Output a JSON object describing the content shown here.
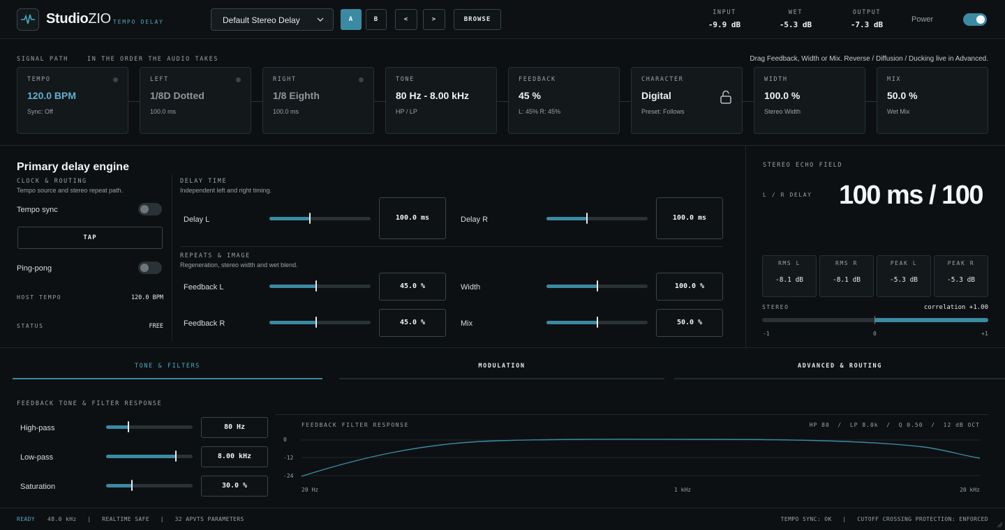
{
  "header": {
    "brand_studio": "Studio",
    "brand_zio": "ZIO",
    "brand_sub": "TEMPO DELAY",
    "preset": "Default Stereo Delay",
    "btn_a": "A",
    "btn_b": "B",
    "btn_prev": "<",
    "btn_next": ">",
    "btn_browse": "BROWSE",
    "meters": [
      {
        "label": "INPUT",
        "value": "-9.9 dB"
      },
      {
        "label": "WET",
        "value": "-5.3 dB"
      },
      {
        "label": "OUTPUT",
        "value": "-7.3 dB"
      }
    ],
    "power_label": "Power"
  },
  "signal_path": {
    "title": "SIGNAL PATH",
    "subtitle": "IN THE ORDER THE AUDIO TAKES",
    "hint": "Drag Feedback, Width or Mix. Reverse / Diffusion / Ducking live in Advanced.",
    "cards": [
      {
        "label": "TEMPO",
        "value": "120.0 BPM",
        "sub": "Sync: Off"
      },
      {
        "label": "LEFT",
        "value": "1/8D Dotted",
        "sub": "100.0 ms"
      },
      {
        "label": "RIGHT",
        "value": "1/8 Eighth",
        "sub": "100.0 ms"
      },
      {
        "label": "TONE",
        "value": "80 Hz - 8.00 kHz",
        "sub": "HP / LP"
      },
      {
        "label": "FEEDBACK",
        "value": "45 %",
        "sub": "L: 45%   R: 45%"
      },
      {
        "label": "CHARACTER",
        "value": "Digital",
        "sub": "Preset: Follows"
      },
      {
        "label": "WIDTH",
        "value": "100.0 %",
        "sub": "Stereo Width"
      },
      {
        "label": "MIX",
        "value": "50.0 %",
        "sub": "Wet Mix"
      }
    ]
  },
  "engine": {
    "title": "Primary delay engine",
    "clock_title": "CLOCK & ROUTING",
    "clock_sub": "Tempo source and stereo repeat path.",
    "tempo_sync": "Tempo sync",
    "tap": "TAP",
    "ping_pong": "Ping-pong",
    "host_tempo_label": "HOST TEMPO",
    "host_tempo_value": "120.0 BPM",
    "status_label": "STATUS",
    "status_value": "FREE",
    "delay_title": "DELAY TIME",
    "delay_sub": "Independent left and right timing.",
    "delay_l_label": "Delay L",
    "delay_l_value": "100.0 ms",
    "delay_l_level": 0.4,
    "delay_r_label": "Delay R",
    "delay_r_value": "100.0 ms",
    "delay_r_level": 0.4,
    "repeats_title": "REPEATS & IMAGE",
    "repeats_sub": "Regeneration, stereo width and wet blend.",
    "fb_l_label": "Feedback L",
    "fb_l_value": "45.0 %",
    "fb_l_level": 0.46,
    "width_label": "Width",
    "width_value": "100.0 %",
    "width_level": 0.5,
    "fb_r_label": "Feedback R",
    "fb_r_value": "45.0 %",
    "fb_r_level": 0.46,
    "mix_label": "Mix",
    "mix_value": "50.0 %",
    "mix_level": 0.5
  },
  "echo_field": {
    "title": "STEREO ECHO FIELD",
    "lr_label": "L / R DELAY",
    "lr_value": "100 ms / 100",
    "meters": [
      {
        "label": "RMS L",
        "value": "-8.1 dB"
      },
      {
        "label": "RMS R",
        "value": "-8.1 dB"
      },
      {
        "label": "PEAK L",
        "value": "-5.3 dB"
      },
      {
        "label": "PEAK R",
        "value": "-5.3 dB"
      }
    ],
    "stereo_label": "STEREO",
    "correlation": "correlation +1.00",
    "correlation_value": 1.0,
    "tick_min": "-1",
    "tick_mid": "0",
    "tick_max": "+1"
  },
  "tabs": [
    "TONE & FILTERS",
    "MODULATION",
    "ADVANCED & ROUTING"
  ],
  "filters": {
    "title": "FEEDBACK TONE & FILTER RESPONSE",
    "hp_label": "High-pass",
    "hp_value": "80 Hz",
    "hp_level": 0.26,
    "lp_label": "Low-pass",
    "lp_value": "8.00 kHz",
    "lp_level": 0.81,
    "sat_label": "Saturation",
    "sat_value": "30.0 %",
    "sat_level": 0.3,
    "graph_title": "FEEDBACK FILTER RESPONSE",
    "graph_params": "HP 80  /  LP 8.0k  /  Q 0.50  /  12 dB OCT",
    "y_ticks": [
      "0",
      "-12",
      "-24"
    ],
    "x_ticks": [
      "20 Hz",
      "1 kHz",
      "20 kHz"
    ]
  },
  "footer": {
    "ready": "READY",
    "info": "48.0 kHz   |   REALTIME SAFE   |   32 APVTS PARAMETERS",
    "right": "TEMPO SYNC: OK   |   CUTOFF CROSSING PROTECTION: ENFORCED"
  },
  "colors": {
    "accent": "#3b8aa4",
    "background": "#0d1012",
    "card": "#13181b"
  }
}
